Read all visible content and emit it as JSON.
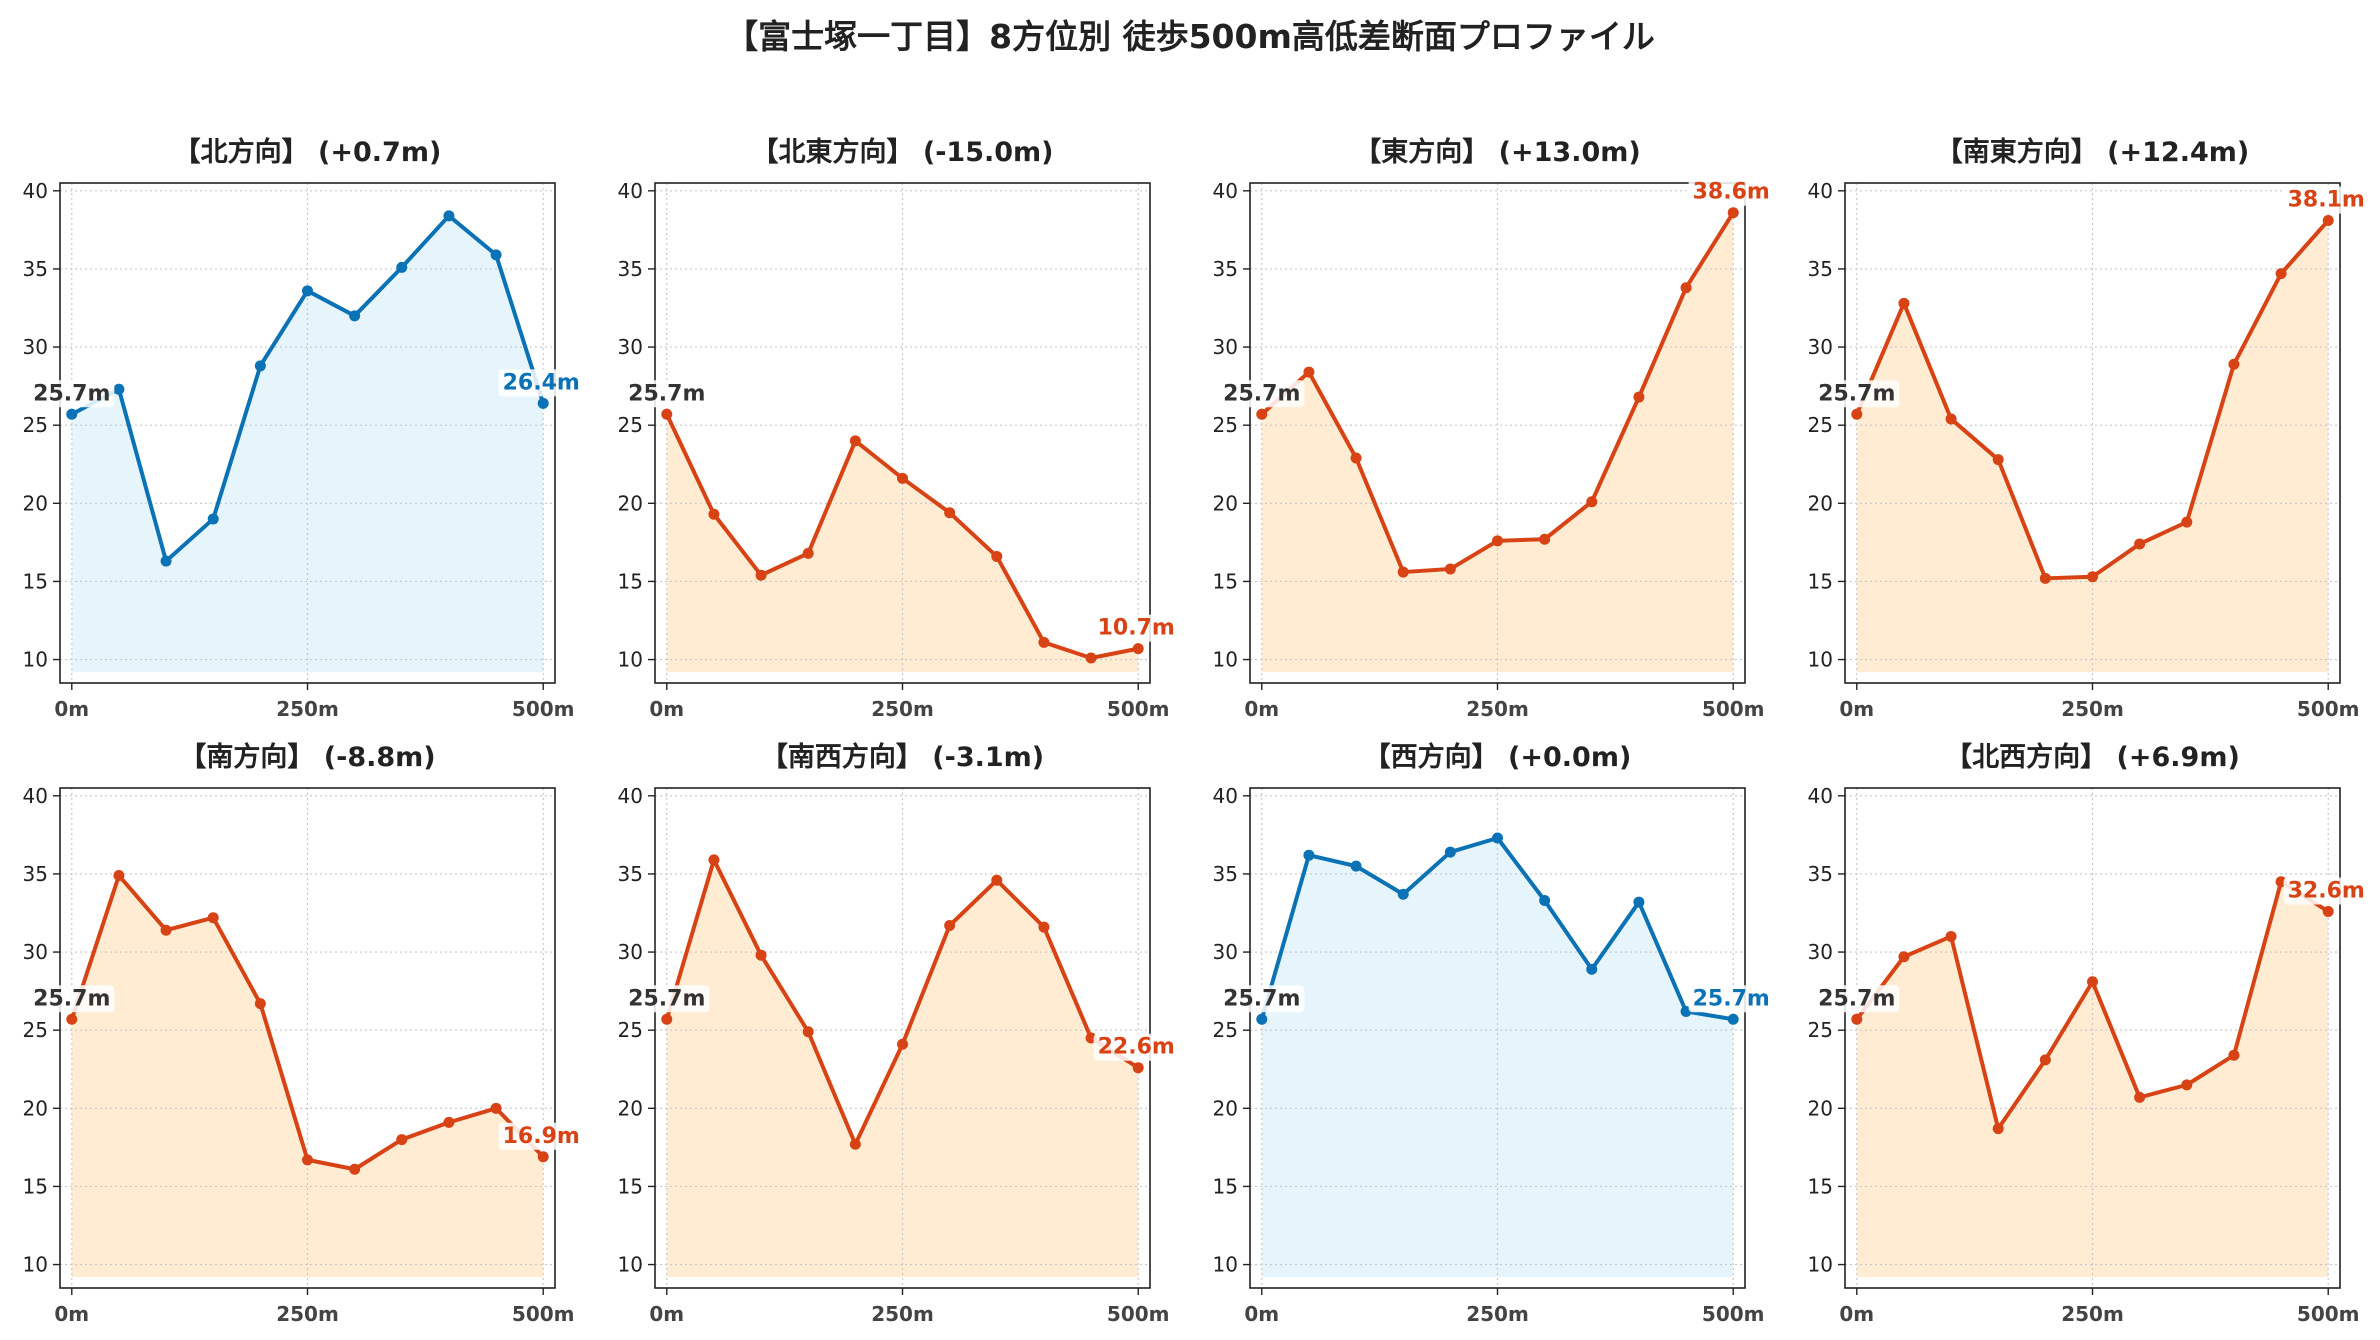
{
  "title": "【富士塚一丁目】8方位別 徒歩500m高低差断面プロファイル",
  "colors": {
    "up_line": "#d84315",
    "up_fill": "#ffecd2",
    "flat_line": "#0a72b5",
    "flat_fill": "#e6f5fc",
    "start_label": "#333333",
    "axis": "#222222",
    "grid": "#c8c8c8"
  },
  "chart_data": [
    {
      "type": "area",
      "title": "【北方向】 (+0.7m)",
      "color": "flat",
      "x": [
        0,
        50,
        100,
        150,
        200,
        250,
        300,
        350,
        400,
        450,
        500
      ],
      "y": [
        25.7,
        27.3,
        16.3,
        19.0,
        28.8,
        33.6,
        32.0,
        35.1,
        38.4,
        35.9,
        26.4
      ],
      "start_label": "25.7m",
      "end_label": "26.4m",
      "xticks": [
        "0m",
        "250m",
        "500m"
      ],
      "yticks": [
        10,
        15,
        20,
        25,
        30,
        35,
        40
      ],
      "ylim": [
        8.5,
        40.5
      ],
      "grid": true
    },
    {
      "type": "area",
      "title": "【北東方向】 (-15.0m)",
      "color": "up",
      "x": [
        0,
        50,
        100,
        150,
        200,
        250,
        300,
        350,
        400,
        450,
        500
      ],
      "y": [
        25.7,
        19.3,
        15.4,
        16.8,
        24.0,
        21.6,
        19.4,
        16.6,
        11.1,
        10.1,
        10.7
      ],
      "start_label": "25.7m",
      "end_label": "10.7m",
      "xticks": [
        "0m",
        "250m",
        "500m"
      ],
      "yticks": [
        10,
        15,
        20,
        25,
        30,
        35,
        40
      ],
      "ylim": [
        8.5,
        40.5
      ],
      "grid": true
    },
    {
      "type": "area",
      "title": "【東方向】 (+13.0m)",
      "color": "up",
      "x": [
        0,
        50,
        100,
        150,
        200,
        250,
        300,
        350,
        400,
        450,
        500
      ],
      "y": [
        25.7,
        28.4,
        22.9,
        15.6,
        15.8,
        17.6,
        17.7,
        20.1,
        26.8,
        33.8,
        38.6
      ],
      "start_label": "25.7m",
      "end_label": "38.6m",
      "xticks": [
        "0m",
        "250m",
        "500m"
      ],
      "yticks": [
        10,
        15,
        20,
        25,
        30,
        35,
        40
      ],
      "ylim": [
        8.5,
        40.5
      ],
      "grid": true
    },
    {
      "type": "area",
      "title": "【南東方向】 (+12.4m)",
      "color": "up",
      "x": [
        0,
        50,
        100,
        150,
        200,
        250,
        300,
        350,
        400,
        450,
        500
      ],
      "y": [
        25.7,
        32.8,
        25.4,
        22.8,
        15.2,
        15.3,
        17.4,
        18.8,
        28.9,
        34.7,
        38.1
      ],
      "start_label": "25.7m",
      "end_label": "38.1m",
      "xticks": [
        "0m",
        "250m",
        "500m"
      ],
      "yticks": [
        10,
        15,
        20,
        25,
        30,
        35,
        40
      ],
      "ylim": [
        8.5,
        40.5
      ],
      "grid": true
    },
    {
      "type": "area",
      "title": "【南方向】 (-8.8m)",
      "color": "up",
      "x": [
        0,
        50,
        100,
        150,
        200,
        250,
        300,
        350,
        400,
        450,
        500
      ],
      "y": [
        25.7,
        34.9,
        31.4,
        32.2,
        26.7,
        16.7,
        16.1,
        18.0,
        19.1,
        20.0,
        16.9
      ],
      "start_label": "25.7m",
      "end_label": "16.9m",
      "xticks": [
        "0m",
        "250m",
        "500m"
      ],
      "yticks": [
        10,
        15,
        20,
        25,
        30,
        35,
        40
      ],
      "ylim": [
        8.5,
        40.5
      ],
      "grid": true
    },
    {
      "type": "area",
      "title": "【南西方向】 (-3.1m)",
      "color": "up",
      "x": [
        0,
        50,
        100,
        150,
        200,
        250,
        300,
        350,
        400,
        450,
        500
      ],
      "y": [
        25.7,
        35.9,
        29.8,
        24.9,
        17.7,
        24.1,
        31.7,
        34.6,
        31.6,
        24.5,
        22.6
      ],
      "start_label": "25.7m",
      "end_label": "22.6m",
      "xticks": [
        "0m",
        "250m",
        "500m"
      ],
      "yticks": [
        10,
        15,
        20,
        25,
        30,
        35,
        40
      ],
      "ylim": [
        8.5,
        40.5
      ],
      "grid": true
    },
    {
      "type": "area",
      "title": "【西方向】 (+0.0m)",
      "color": "flat",
      "x": [
        0,
        50,
        100,
        150,
        200,
        250,
        300,
        350,
        400,
        450,
        500
      ],
      "y": [
        25.7,
        36.2,
        35.5,
        33.7,
        36.4,
        37.3,
        33.3,
        28.9,
        33.2,
        26.2,
        25.7
      ],
      "start_label": "25.7m",
      "end_label": "25.7m",
      "xticks": [
        "0m",
        "250m",
        "500m"
      ],
      "yticks": [
        10,
        15,
        20,
        25,
        30,
        35,
        40
      ],
      "ylim": [
        8.5,
        40.5
      ],
      "grid": true
    },
    {
      "type": "area",
      "title": "【北西方向】 (+6.9m)",
      "color": "up",
      "x": [
        0,
        50,
        100,
        150,
        200,
        250,
        300,
        350,
        400,
        450,
        500
      ],
      "y": [
        25.7,
        29.7,
        31.0,
        18.7,
        23.1,
        28.1,
        20.7,
        21.5,
        23.4,
        34.5,
        32.6
      ],
      "start_label": "25.7m",
      "end_label": "32.6m",
      "xticks": [
        "0m",
        "250m",
        "500m"
      ],
      "yticks": [
        10,
        15,
        20,
        25,
        30,
        35,
        40
      ],
      "ylim": [
        8.5,
        40.5
      ],
      "grid": true
    }
  ]
}
